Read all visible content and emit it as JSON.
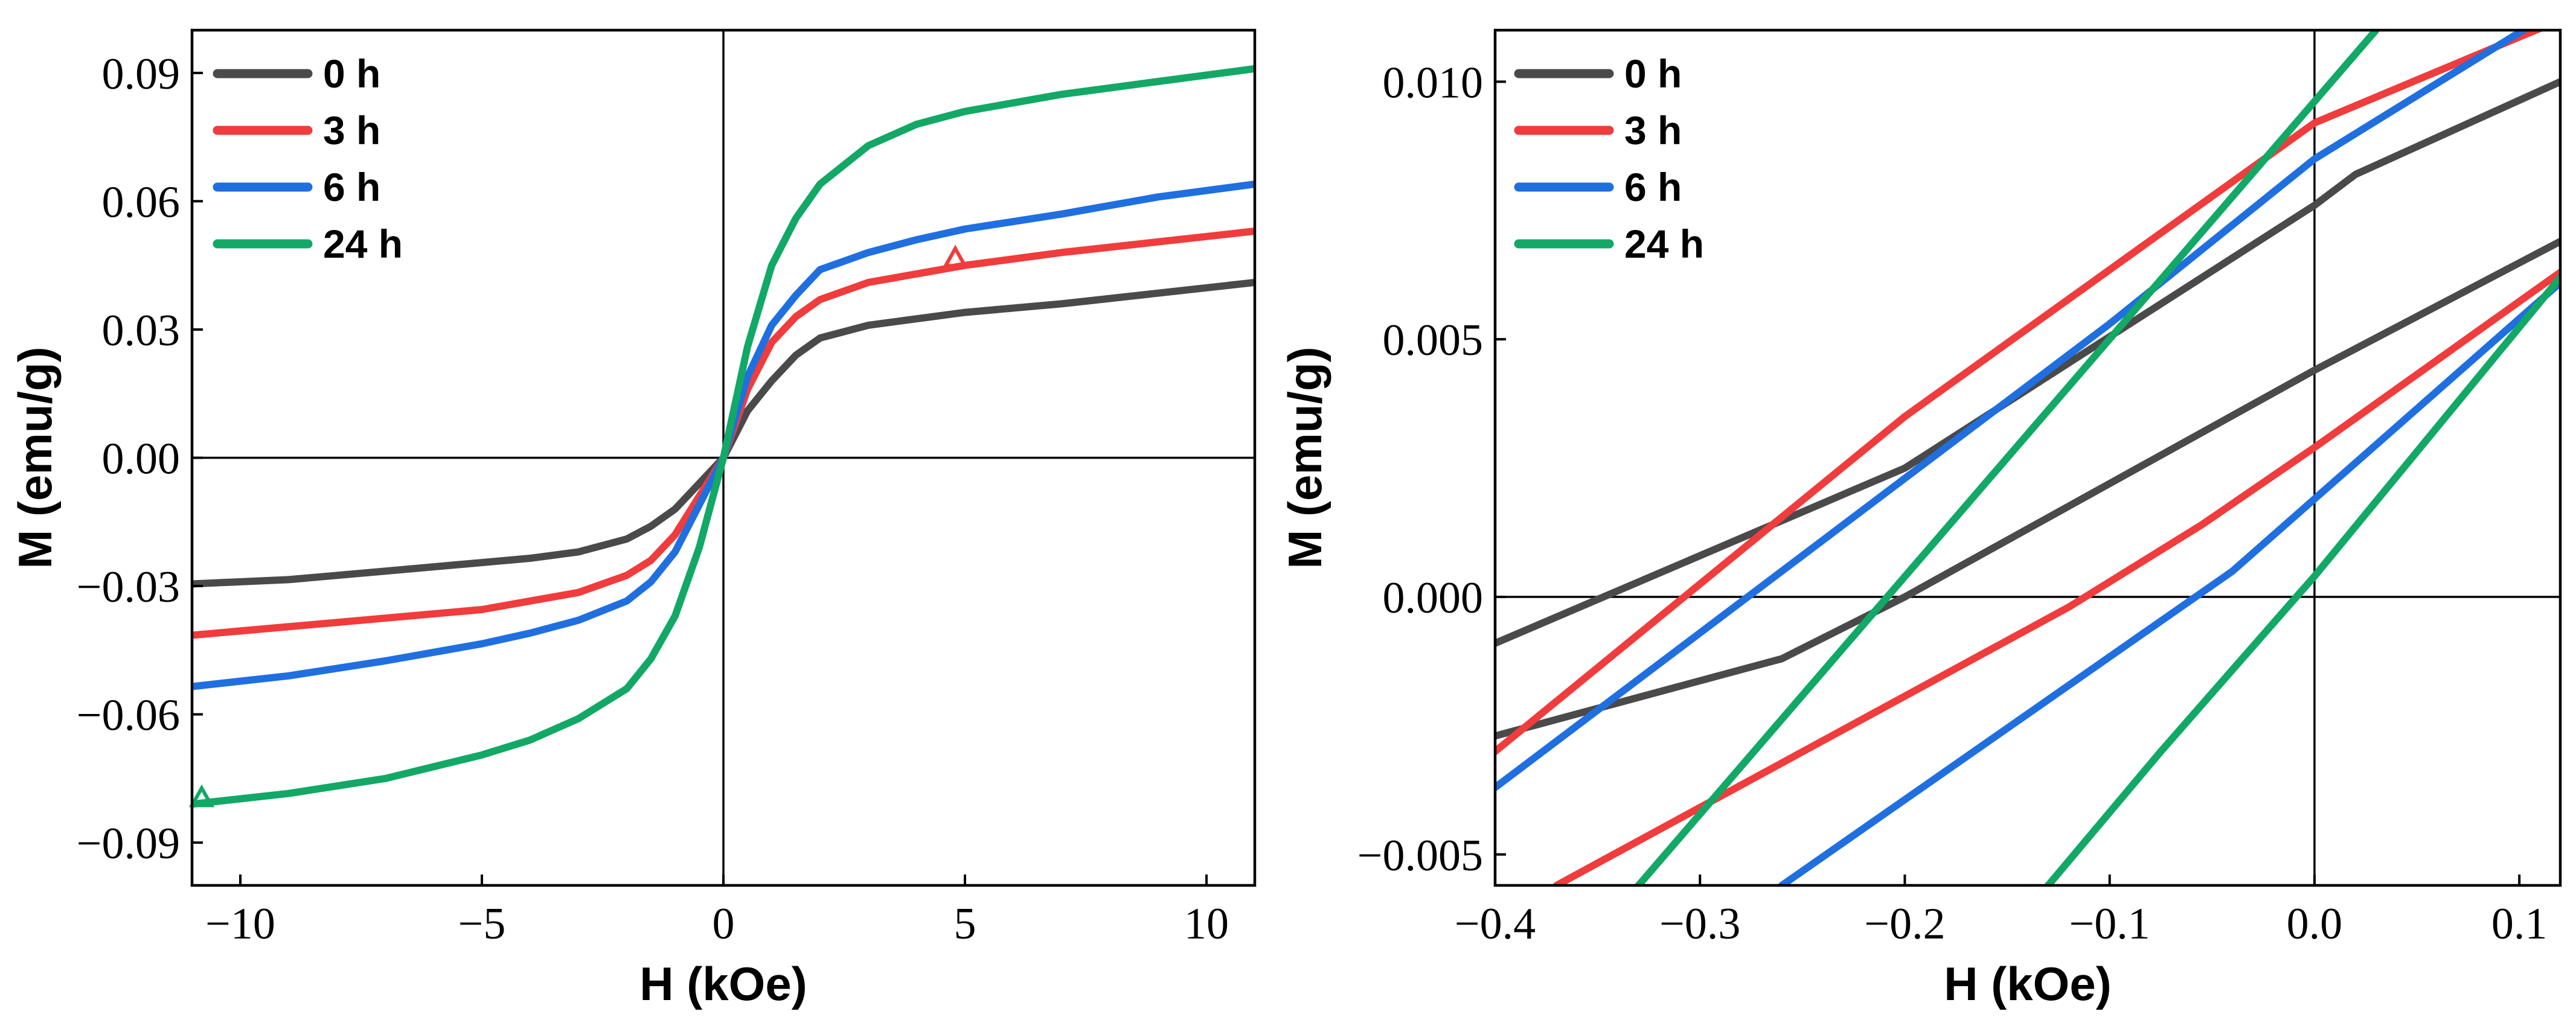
{
  "chart_data": [
    {
      "type": "line",
      "name": "hysteresis-full",
      "title": "",
      "xlabel": "H (kOe)",
      "ylabel": "M (emu/g)",
      "xlim": [
        -11,
        11
      ],
      "ylim": [
        -0.1,
        0.1
      ],
      "xticks": [
        -10,
        -5,
        0,
        5,
        10
      ],
      "xtick_labels": [
        "−10",
        "−5",
        "0",
        "5",
        "10"
      ],
      "yticks": [
        -0.09,
        -0.06,
        -0.03,
        0.0,
        0.03,
        0.06,
        0.09
      ],
      "ytick_labels": [
        "−0.09",
        "−0.06",
        "−0.03",
        "0.00",
        "0.03",
        "0.06",
        "0.09"
      ],
      "legend": "top-left",
      "series": [
        {
          "name": "0 h",
          "color": "#4a4a4a",
          "x": [
            -11,
            -9,
            -7,
            -5,
            -4,
            -3,
            -2,
            -1.5,
            -1,
            -0.5,
            0,
            0.5,
            1,
            1.5,
            2,
            3,
            4,
            5,
            7,
            9,
            11
          ],
          "y": [
            -0.0295,
            -0.0285,
            -0.0265,
            -0.0245,
            -0.0235,
            -0.022,
            -0.019,
            -0.016,
            -0.012,
            -0.006,
            0.0,
            0.011,
            0.018,
            0.024,
            0.028,
            0.031,
            0.0325,
            0.034,
            0.036,
            0.0385,
            0.041
          ]
        },
        {
          "name": "3 h",
          "color": "#f03c3c",
          "x": [
            -11,
            -9,
            -7,
            -5,
            -4,
            -3,
            -2,
            -1.5,
            -1,
            -0.5,
            0,
            0.5,
            1,
            1.5,
            2,
            3,
            4,
            5,
            7,
            9,
            11
          ],
          "y": [
            -0.0415,
            -0.0395,
            -0.0375,
            -0.0355,
            -0.0335,
            -0.0315,
            -0.0275,
            -0.024,
            -0.018,
            -0.009,
            0.0,
            0.016,
            0.027,
            0.033,
            0.037,
            0.041,
            0.043,
            0.045,
            0.048,
            0.0505,
            0.053
          ]
        },
        {
          "name": "6 h",
          "color": "#1f6fe0",
          "x": [
            -11,
            -9,
            -7,
            -5,
            -4,
            -3,
            -2,
            -1.5,
            -1,
            -0.5,
            0,
            0.5,
            1,
            1.5,
            2,
            3,
            4,
            5,
            7,
            9,
            11
          ],
          "y": [
            -0.0535,
            -0.051,
            -0.0475,
            -0.0435,
            -0.041,
            -0.038,
            -0.0335,
            -0.029,
            -0.022,
            -0.011,
            0.0,
            0.019,
            0.031,
            0.038,
            0.044,
            0.048,
            0.051,
            0.0535,
            0.057,
            0.061,
            0.064
          ]
        },
        {
          "name": "24 h",
          "color": "#12a866",
          "x": [
            -11,
            -9,
            -7,
            -5,
            -4,
            -3,
            -2,
            -1.5,
            -1,
            -0.5,
            0,
            0.5,
            1,
            1.5,
            2,
            3,
            4,
            5,
            7,
            9,
            11
          ],
          "y": [
            -0.081,
            -0.0785,
            -0.075,
            -0.0695,
            -0.066,
            -0.061,
            -0.054,
            -0.047,
            -0.037,
            -0.021,
            0.0,
            0.026,
            0.045,
            0.056,
            0.064,
            0.073,
            0.078,
            0.081,
            0.085,
            0.088,
            0.091
          ]
        }
      ]
    },
    {
      "type": "line",
      "name": "hysteresis-zoom",
      "title": "",
      "xlabel": "H (kOe)",
      "ylabel": "M (emu/g)",
      "xlim": [
        -0.4,
        0.12
      ],
      "ylim": [
        -0.0056,
        0.011
      ],
      "xticks": [
        -0.4,
        -0.3,
        -0.2,
        -0.1,
        0.0,
        0.1
      ],
      "xtick_labels": [
        "−0.4",
        "−0.3",
        "−0.2",
        "−0.1",
        "0.0",
        "0.1"
      ],
      "yticks": [
        -0.005,
        0.0,
        0.005,
        0.01
      ],
      "ytick_labels": [
        "−0.005",
        "0.000",
        "0.005",
        "0.010"
      ],
      "legend": "top-left",
      "series": [
        {
          "name": "0 h",
          "color": "#4a4a4a",
          "x": [
            -0.4,
            -0.26,
            -0.2,
            0.0,
            0.12,
            null,
            -0.4,
            -0.2,
            0.0,
            0.02,
            0.12
          ],
          "y": [
            -0.0027,
            -0.0012,
            0.0,
            0.0044,
            0.0069,
            null,
            -0.0009,
            0.0025,
            0.0076,
            0.0082,
            0.01
          ]
        },
        {
          "name": "3 h",
          "color": "#f03c3c",
          "x": [
            -0.4,
            -0.2,
            0.0,
            0.12,
            null,
            -0.37,
            -0.12,
            -0.055,
            0.0,
            0.12
          ],
          "y": [
            -0.003,
            0.0035,
            0.0092,
            0.0112,
            null,
            -0.0056,
            -0.0002,
            0.0014,
            0.0029,
            0.0063
          ]
        },
        {
          "name": "6 h",
          "color": "#1f6fe0",
          "x": [
            -0.4,
            -0.1,
            0.0,
            0.11,
            null,
            -0.26,
            -0.04,
            0.0,
            0.12
          ],
          "y": [
            -0.0037,
            0.0053,
            0.0085,
            0.0112,
            null,
            -0.0056,
            0.0005,
            0.0019,
            0.0061
          ]
        },
        {
          "name": "24 h",
          "color": "#12a866",
          "x": [
            -0.33,
            0.03,
            null,
            -0.13,
            -0.075,
            0.0,
            0.12
          ],
          "y": [
            -0.0056,
            0.011,
            null,
            -0.0056,
            -0.003,
            0.0004,
            0.0062
          ]
        }
      ]
    }
  ]
}
